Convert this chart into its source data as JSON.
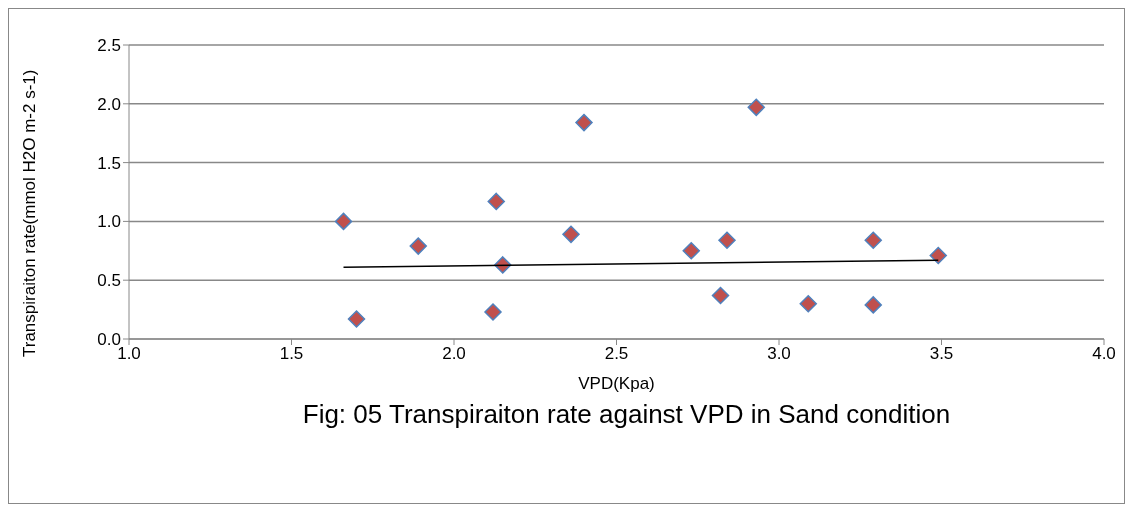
{
  "chart_data": {
    "type": "scatter",
    "title": "Fig: 05 Transpiraiton rate against VPD in Sand condition",
    "xlabel": "VPD(Kpa)",
    "ylabel": "Transpiraiton rate(mmol H2O m-2 s-1)",
    "series": [
      {
        "color": "#c0504d",
        "x": [
          1.66,
          1.7,
          1.89,
          2.13,
          2.12,
          2.15,
          2.36,
          2.4,
          2.73,
          2.84,
          2.82,
          2.93,
          3.09,
          3.29,
          3.29,
          3.49
        ],
        "values": [
          1.0,
          0.17,
          0.79,
          1.17,
          0.23,
          0.63,
          0.89,
          1.84,
          0.75,
          0.84,
          0.37,
          1.97,
          0.3,
          0.84,
          0.29,
          0.71
        ],
        "marker": "diamond"
      },
      {
        "type": "line",
        "color": "#000000",
        "x": [
          1.66,
          3.49
        ],
        "values": [
          0.61,
          0.67
        ],
        "marker": "none"
      }
    ],
    "xlim": [
      1.0,
      4.0
    ],
    "xticks": [
      {
        "value": 1,
        "label": "1.0"
      },
      1.5,
      {
        "value": 2,
        "label": "2.0"
      },
      2.5,
      {
        "value": 3,
        "label": "3.0"
      },
      3.5,
      {
        "value": 4,
        "label": "4.0"
      }
    ],
    "ylim": [
      0,
      2.5
    ],
    "yticks": [
      {
        "value": 0,
        "label": "0.0"
      },
      0.5,
      {
        "value": 1,
        "label": "1.0"
      },
      1.5,
      {
        "value": 2,
        "label": "2.0"
      },
      2.5
    ],
    "grid": "y"
  }
}
